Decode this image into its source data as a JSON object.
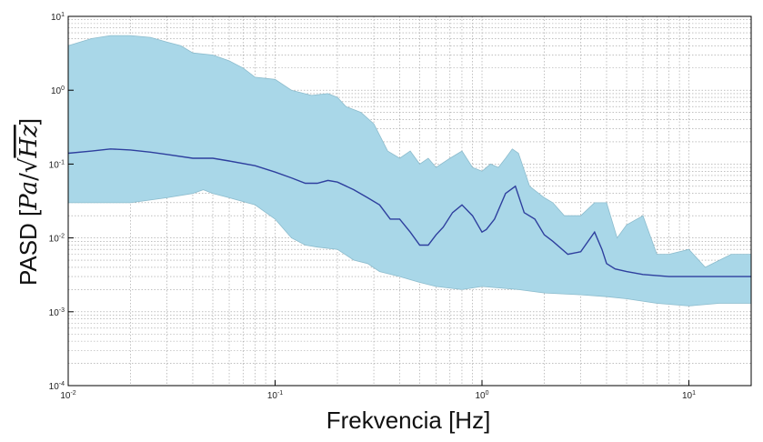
{
  "chart_data": {
    "type": "area",
    "title": "",
    "xlabel": "Frekvencia [Hz]",
    "ylabel": "PASD [Pa/√Hz]",
    "ylabel_parts": {
      "prefix": "PASD [",
      "pa": "Pa",
      "slash": "/",
      "radical": "√",
      "hz": "Hz",
      "suffix": "]"
    },
    "xscale": "log",
    "yscale": "log",
    "xlim": [
      0.01,
      20
    ],
    "ylim": [
      0.0001,
      10
    ],
    "grid": true,
    "x_ticks": [
      {
        "base": "10",
        "exp": "-2"
      },
      {
        "base": "10",
        "exp": "-1"
      },
      {
        "base": "10",
        "exp": "0"
      },
      {
        "base": "10",
        "exp": "1"
      }
    ],
    "y_ticks": [
      {
        "base": "10",
        "exp": "-4"
      },
      {
        "base": "10",
        "exp": "-3"
      },
      {
        "base": "10",
        "exp": "-2"
      },
      {
        "base": "10",
        "exp": "-1"
      },
      {
        "base": "10",
        "exp": "0"
      },
      {
        "base": "10",
        "exp": "1"
      }
    ],
    "colors": {
      "band_fill": "#a9d7e8",
      "band_edge": "#8cbccd",
      "median_line": "#2e3f9e",
      "grid": "#9a9a9a"
    },
    "series": [
      {
        "type": "line",
        "x": [
          0.01,
          0.013,
          0.016,
          0.02,
          0.025,
          0.03,
          0.04,
          0.05,
          0.06,
          0.08,
          0.1,
          0.12,
          0.14,
          0.16,
          0.18,
          0.2,
          0.24,
          0.28,
          0.32,
          0.36,
          0.4,
          0.45,
          0.5,
          0.55,
          0.6,
          0.65,
          0.72,
          0.8,
          0.9,
          1.0,
          1.05,
          1.15,
          1.3,
          1.45,
          1.6,
          1.8,
          2.0,
          2.2,
          2.6,
          3.0,
          3.5,
          3.8,
          4.0,
          4.4,
          5.0,
          6.0,
          8.0,
          10.0,
          14.0,
          20.0
        ],
        "y": [
          0.14,
          0.15,
          0.16,
          0.155,
          0.145,
          0.135,
          0.12,
          0.12,
          0.11,
          0.095,
          0.078,
          0.065,
          0.055,
          0.055,
          0.06,
          0.057,
          0.045,
          0.035,
          0.028,
          0.018,
          0.018,
          0.012,
          0.008,
          0.008,
          0.011,
          0.014,
          0.022,
          0.028,
          0.02,
          0.012,
          0.013,
          0.018,
          0.04,
          0.05,
          0.022,
          0.018,
          0.011,
          0.009,
          0.006,
          0.0065,
          0.012,
          0.007,
          0.0045,
          0.0038,
          0.0035,
          0.0032,
          0.003,
          0.003,
          0.003,
          0.003
        ]
      },
      {
        "type": "band-upper",
        "x": [
          0.01,
          0.013,
          0.016,
          0.02,
          0.025,
          0.03,
          0.035,
          0.04,
          0.05,
          0.06,
          0.07,
          0.08,
          0.1,
          0.12,
          0.15,
          0.18,
          0.2,
          0.22,
          0.26,
          0.3,
          0.35,
          0.4,
          0.45,
          0.5,
          0.55,
          0.6,
          0.7,
          0.8,
          0.9,
          1.0,
          1.1,
          1.2,
          1.3,
          1.4,
          1.5,
          1.7,
          2.0,
          2.2,
          2.5,
          3.0,
          3.5,
          4.0,
          4.5,
          5.0,
          6.0,
          7.0,
          8.0,
          10.0,
          12.0,
          16.0,
          20.0
        ],
        "y": [
          4.0,
          5.0,
          5.5,
          5.5,
          5.2,
          4.5,
          4.0,
          3.2,
          3.0,
          2.5,
          2.0,
          1.5,
          1.4,
          1.0,
          0.85,
          0.9,
          0.8,
          0.6,
          0.5,
          0.35,
          0.15,
          0.12,
          0.15,
          0.1,
          0.12,
          0.09,
          0.12,
          0.15,
          0.09,
          0.08,
          0.1,
          0.09,
          0.12,
          0.16,
          0.14,
          0.05,
          0.035,
          0.03,
          0.02,
          0.02,
          0.03,
          0.03,
          0.01,
          0.015,
          0.02,
          0.006,
          0.006,
          0.007,
          0.004,
          0.006,
          0.006
        ]
      },
      {
        "type": "band-lower",
        "x": [
          0.01,
          0.02,
          0.03,
          0.04,
          0.045,
          0.05,
          0.06,
          0.08,
          0.1,
          0.12,
          0.14,
          0.16,
          0.2,
          0.24,
          0.28,
          0.32,
          0.4,
          0.5,
          0.6,
          0.8,
          1.0,
          1.5,
          2.0,
          3.0,
          4.0,
          5.0,
          7.0,
          10.0,
          14.0,
          20.0
        ],
        "y": [
          0.03,
          0.03,
          0.035,
          0.04,
          0.045,
          0.04,
          0.035,
          0.028,
          0.018,
          0.01,
          0.008,
          0.0075,
          0.007,
          0.005,
          0.0045,
          0.0035,
          0.003,
          0.0025,
          0.0022,
          0.002,
          0.0022,
          0.002,
          0.0018,
          0.0017,
          0.0016,
          0.0015,
          0.0013,
          0.0012,
          0.0013,
          0.0013
        ]
      }
    ]
  }
}
